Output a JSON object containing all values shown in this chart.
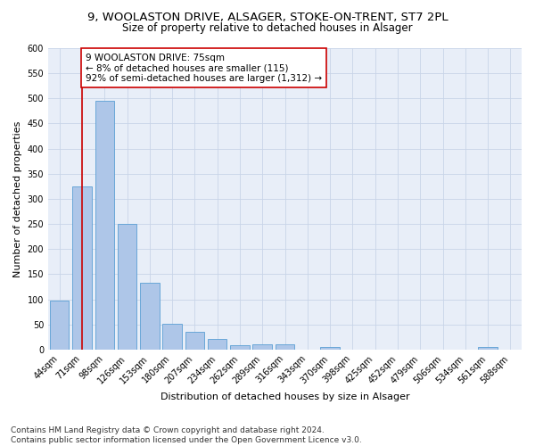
{
  "title": "9, WOOLASTON DRIVE, ALSAGER, STOKE-ON-TRENT, ST7 2PL",
  "subtitle": "Size of property relative to detached houses in Alsager",
  "xlabel": "Distribution of detached houses by size in Alsager",
  "ylabel": "Number of detached properties",
  "categories": [
    "44sqm",
    "71sqm",
    "98sqm",
    "126sqm",
    "153sqm",
    "180sqm",
    "207sqm",
    "234sqm",
    "262sqm",
    "289sqm",
    "316sqm",
    "343sqm",
    "370sqm",
    "398sqm",
    "425sqm",
    "452sqm",
    "479sqm",
    "506sqm",
    "534sqm",
    "561sqm",
    "588sqm"
  ],
  "values": [
    97,
    325,
    495,
    250,
    133,
    51,
    36,
    22,
    8,
    11,
    10,
    0,
    6,
    0,
    0,
    0,
    0,
    0,
    0,
    5,
    0
  ],
  "bar_color": "#aec6e8",
  "bar_edge_color": "#5a9fd4",
  "vline_x": 1.0,
  "vline_color": "#cc0000",
  "annotation_text": "9 WOOLASTON DRIVE: 75sqm\n← 8% of detached houses are smaller (115)\n92% of semi-detached houses are larger (1,312) →",
  "annotation_box_facecolor": "#ffffff",
  "annotation_box_edgecolor": "#cc0000",
  "ylim": [
    0,
    600
  ],
  "yticks": [
    0,
    50,
    100,
    150,
    200,
    250,
    300,
    350,
    400,
    450,
    500,
    550,
    600
  ],
  "grid_color": "#c8d4e8",
  "background_color": "#e8eef8",
  "footer_text": "Contains HM Land Registry data © Crown copyright and database right 2024.\nContains public sector information licensed under the Open Government Licence v3.0.",
  "title_fontsize": 9.5,
  "subtitle_fontsize": 8.5,
  "axis_label_fontsize": 8,
  "tick_fontsize": 7,
  "annotation_fontsize": 7.5,
  "footer_fontsize": 6.5
}
